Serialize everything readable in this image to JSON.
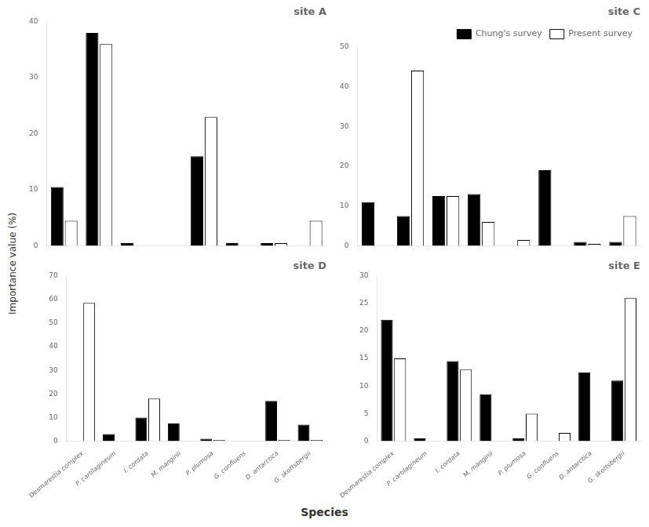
{
  "chart_data": [
    {
      "type": "bar",
      "title": "site A",
      "categories": [
        "Desmarestia complex",
        "P. cartilagineum",
        "I. cordata",
        "M. manginii",
        "P. plumosa",
        "G. confluens",
        "D. antarctica",
        "G. skottsbergii"
      ],
      "series": [
        {
          "name": "Chung's survey",
          "color": "#000000",
          "values": [
            10.5,
            38.0,
            0.5,
            0.0,
            16.0,
            0.5,
            0.5,
            0.0
          ]
        },
        {
          "name": "Present survey",
          "color": "#ffffff",
          "values": [
            4.5,
            36.0,
            0.0,
            0.0,
            23.0,
            0.0,
            0.5,
            4.5
          ]
        }
      ],
      "ylim": [
        0,
        40
      ],
      "yticks": [
        0,
        10,
        20,
        30,
        40
      ],
      "grid": false,
      "tick_labels": "y"
    },
    {
      "type": "bar",
      "title": "site C",
      "categories": [
        "Desmarestia complex",
        "P. cartilagineum",
        "I. cordata",
        "M. manginii",
        "P. plumosa",
        "G. confluens",
        "D. antarctica",
        "G. skottsbergii"
      ],
      "series": [
        {
          "name": "Chung's survey",
          "color": "#000000",
          "values": [
            11.0,
            7.5,
            12.5,
            13.0,
            0.0,
            19.0,
            1.0,
            1.0
          ]
        },
        {
          "name": "Present survey",
          "color": "#ffffff",
          "values": [
            0.0,
            44.0,
            12.5,
            6.0,
            1.5,
            0.0,
            0.5,
            7.5
          ]
        }
      ],
      "ylim": [
        0,
        50
      ],
      "yticks": [
        0,
        10,
        20,
        30,
        40,
        50
      ],
      "grid": false,
      "tick_labels": "y",
      "legend": "upper right"
    },
    {
      "type": "bar",
      "title": "site D",
      "categories": [
        "Desmarestia complex",
        "P. cartilagineum",
        "I. cordata",
        "M. manginii",
        "P. plumosa",
        "G. confluens",
        "D. antarctica",
        "G. skottsbergii"
      ],
      "series": [
        {
          "name": "Chung's survey",
          "color": "#000000",
          "values": [
            0.0,
            3.0,
            10.0,
            7.5,
            1.0,
            0.0,
            17.0,
            7.0
          ]
        },
        {
          "name": "Present survey",
          "color": "#ffffff",
          "values": [
            58.5,
            0.0,
            18.0,
            0.0,
            0.5,
            0.0,
            0.5,
            0.5
          ]
        }
      ],
      "ylim": [
        0,
        70
      ],
      "yticks": [
        0,
        10,
        20,
        30,
        40,
        50,
        60,
        70
      ],
      "grid": false
    },
    {
      "type": "bar",
      "title": "site E",
      "categories": [
        "Desmarestia complex",
        "P. cartilagineum",
        "I. cordata",
        "M. manginii",
        "P. plumosa",
        "G. confluens",
        "D. antarctica",
        "G. skottsbergii"
      ],
      "series": [
        {
          "name": "Chung's survey",
          "color": "#000000",
          "values": [
            22.0,
            0.5,
            14.5,
            8.5,
            0.5,
            0.0,
            12.5,
            11.0
          ]
        },
        {
          "name": "Present survey",
          "color": "#ffffff",
          "values": [
            15.0,
            0.0,
            13.0,
            0.0,
            5.0,
            1.5,
            0.0,
            26.0
          ]
        }
      ],
      "ylim": [
        0,
        30
      ],
      "yticks": [
        0,
        5,
        10,
        15,
        20,
        25,
        30
      ],
      "grid": false
    }
  ],
  "ylabel": "Importance value (%)",
  "xlabel": "Species"
}
